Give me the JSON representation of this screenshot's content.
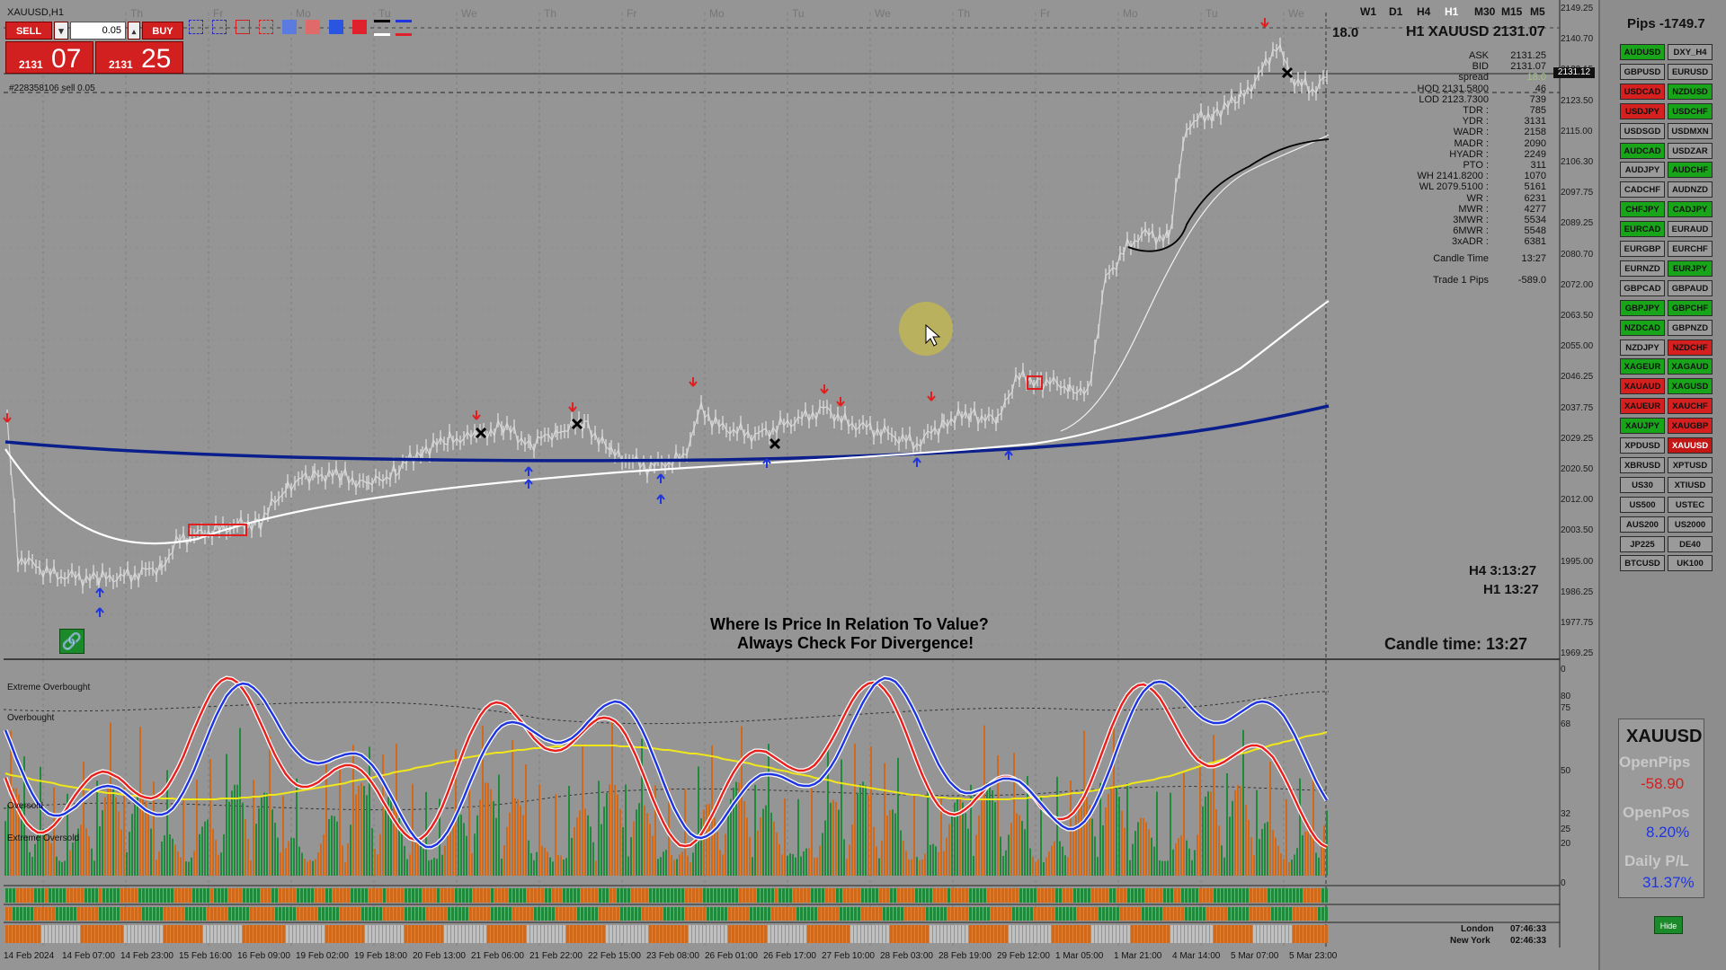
{
  "window": {
    "title": "XAUUSD,H1",
    "order_label": "#228358106 sell 0.05"
  },
  "trade_panel": {
    "sell_label": "SELL",
    "buy_label": "BUY",
    "lot": "0.05",
    "bid_small": "2131",
    "bid_big": "07",
    "ask_small": "2131",
    "ask_big": "25"
  },
  "timeframes": [
    "W1",
    "D1",
    "H4",
    "H1",
    "M30",
    "M15",
    "M5"
  ],
  "active_timeframe": "H1",
  "header": {
    "spread_value": "18.0",
    "symbol_price": "H1 XAUUSD 2131.07"
  },
  "day_labels": [
    "Th",
    "Fr",
    "Mo",
    "Tu",
    "We",
    "Th",
    "Fr",
    "Mo",
    "Tu",
    "We",
    "Th",
    "Fr",
    "Mo",
    "Tu",
    "We"
  ],
  "stats": [
    {
      "k": "ASK",
      "v": "2131.25"
    },
    {
      "k": "BID",
      "v": "2131.07"
    },
    {
      "k": "spread",
      "v": "18.0"
    },
    {
      "k": "HOD 2131.5800",
      "v": "46"
    },
    {
      "k": "LOD 2123.7300",
      "v": "739"
    },
    {
      "k": "TDR :",
      "v": "785"
    },
    {
      "k": "YDR :",
      "v": "3131"
    },
    {
      "k": "WADR :",
      "v": "2158"
    },
    {
      "k": "MADR :",
      "v": "2090"
    },
    {
      "k": "HYADR :",
      "v": "2249"
    },
    {
      "k": "PTO :",
      "v": "311"
    },
    {
      "k": "WH 2141.8200 :",
      "v": "1070"
    },
    {
      "k": "WL 2079.5100 :",
      "v": "5161"
    },
    {
      "k": "WR :",
      "v": "6231"
    },
    {
      "k": "MWR :",
      "v": "4277"
    },
    {
      "k": "3MWR :",
      "v": "5534"
    },
    {
      "k": "6MWR :",
      "v": "5548"
    },
    {
      "k": "3xADR :",
      "v": "6381"
    },
    {
      "k": "Candle Time",
      "v": "13:27"
    },
    {
      "k": "Trade 1 Pips",
      "v": "-589.0"
    }
  ],
  "timers": {
    "h4": "H4 3:13:27",
    "h1": "H1 13:27",
    "candle": "Candle time:  13:27"
  },
  "caption": {
    "line1": "Where Is Price In Relation To Value?",
    "line2": "Always Check For Divergence!"
  },
  "price_axis": [
    "2149.25",
    "2140.70",
    "2132.15",
    "2123.50",
    "2115.00",
    "2106.30",
    "2097.75",
    "2089.25",
    "2080.70",
    "2072.00",
    "2063.50",
    "2055.00",
    "2046.25",
    "2037.75",
    "2029.25",
    "2020.50",
    "2012.00",
    "2003.50",
    "1995.00",
    "1986.25",
    "1977.75",
    "1969.25"
  ],
  "current_price_tag": "2131.12",
  "osc_axis": [
    "0",
    "80",
    "75",
    "68",
    "50",
    "32",
    "25",
    "20",
    "0"
  ],
  "osc_labels": [
    "Extreme Overbought",
    "Overbought",
    "Oversold",
    "Extreme Oversold"
  ],
  "time_axis": [
    "14 Feb 2024",
    "14 Feb 07:00",
    "14 Feb 23:00",
    "15 Feb 16:00",
    "16 Feb 09:00",
    "19 Feb 02:00",
    "19 Feb 18:00",
    "20 Feb 13:00",
    "21 Feb 06:00",
    "21 Feb 22:00",
    "22 Feb 15:00",
    "23 Feb 08:00",
    "26 Feb 01:00",
    "26 Feb 17:00",
    "27 Feb 10:00",
    "28 Feb 03:00",
    "28 Feb 19:00",
    "29 Feb 12:00",
    "1 Mar 05:00",
    "1 Mar 21:00",
    "4 Mar 14:00",
    "5 Mar 07:00",
    "5 Mar 23:00"
  ],
  "sessions": [
    {
      "city": "London",
      "time": "07:46:33"
    },
    {
      "city": "New York",
      "time": "02:46:33"
    }
  ],
  "side_panel": {
    "pips_label": "Pips -1749.7",
    "pairs": [
      [
        "AUDUSD",
        "g"
      ],
      [
        "DXY_H4",
        "n"
      ],
      [
        "GBPUSD",
        "n"
      ],
      [
        "EURUSD",
        "n"
      ],
      [
        "USDCAD",
        "r"
      ],
      [
        "NZDUSD",
        "g"
      ],
      [
        "USDJPY",
        "r"
      ],
      [
        "USDCHF",
        "g"
      ],
      [
        "USDSGD",
        "n"
      ],
      [
        "USDMXN",
        "n"
      ],
      [
        "AUDCAD",
        "g"
      ],
      [
        "USDZAR",
        "n"
      ],
      [
        "AUDJPY",
        "n"
      ],
      [
        "AUDCHF",
        "g"
      ],
      [
        "CADCHF",
        "n"
      ],
      [
        "AUDNZD",
        "n"
      ],
      [
        "CHFJPY",
        "g"
      ],
      [
        "CADJPY",
        "g"
      ],
      [
        "EURCAD",
        "g"
      ],
      [
        "EURAUD",
        "n"
      ],
      [
        "EURGBP",
        "n"
      ],
      [
        "EURCHF",
        "n"
      ],
      [
        "EURNZD",
        "n"
      ],
      [
        "EURJPY",
        "g"
      ],
      [
        "GBPCAD",
        "n"
      ],
      [
        "GBPAUD",
        "n"
      ],
      [
        "GBPJPY",
        "g"
      ],
      [
        "GBPCHF",
        "g"
      ],
      [
        "NZDCAD",
        "g"
      ],
      [
        "GBPNZD",
        "n"
      ],
      [
        "NZDJPY",
        "n"
      ],
      [
        "NZDCHF",
        "r"
      ],
      [
        "XAGEUR",
        "g"
      ],
      [
        "XAGAUD",
        "g"
      ],
      [
        "XAUAUD",
        "r"
      ],
      [
        "XAGUSD",
        "g"
      ],
      [
        "XAUEUR",
        "r"
      ],
      [
        "XAUCHF",
        "r"
      ],
      [
        "XAUJPY",
        "g"
      ],
      [
        "XAUGBP",
        "r"
      ],
      [
        "XPDUSD",
        "n"
      ],
      [
        "XAUUSD",
        "sel"
      ],
      [
        "XBRUSD",
        "n"
      ],
      [
        "XPTUSD",
        "n"
      ],
      [
        "US30",
        "n"
      ],
      [
        "XTIUSD",
        "n"
      ],
      [
        "US500",
        "n"
      ],
      [
        "USTEC",
        "n"
      ],
      [
        "AUS200",
        "n"
      ],
      [
        "US2000",
        "n"
      ],
      [
        "JP225",
        "n"
      ],
      [
        "DE40",
        "n"
      ],
      [
        "BTCUSD",
        "n"
      ],
      [
        "UK100",
        "n"
      ]
    ],
    "symbol": "XAUUSD",
    "open_pips_label": "OpenPips",
    "open_pips_value": "-58.90",
    "open_pos_label": "OpenPos",
    "open_pos_value": "8.20%",
    "daily_pl_label": "Daily P/L",
    "daily_pl_value": "31.37%",
    "hide_label": "Hide"
  },
  "colors": {
    "up": "#1f8a3b",
    "down": "#d06a1a",
    "sell": "#d21f1f",
    "blue_ma": "#0a1e8c",
    "white_ma": "#ffffff",
    "osc_red": "#e8201e",
    "osc_blue": "#1f35e0",
    "osc_yellow": "#f0e61a"
  }
}
